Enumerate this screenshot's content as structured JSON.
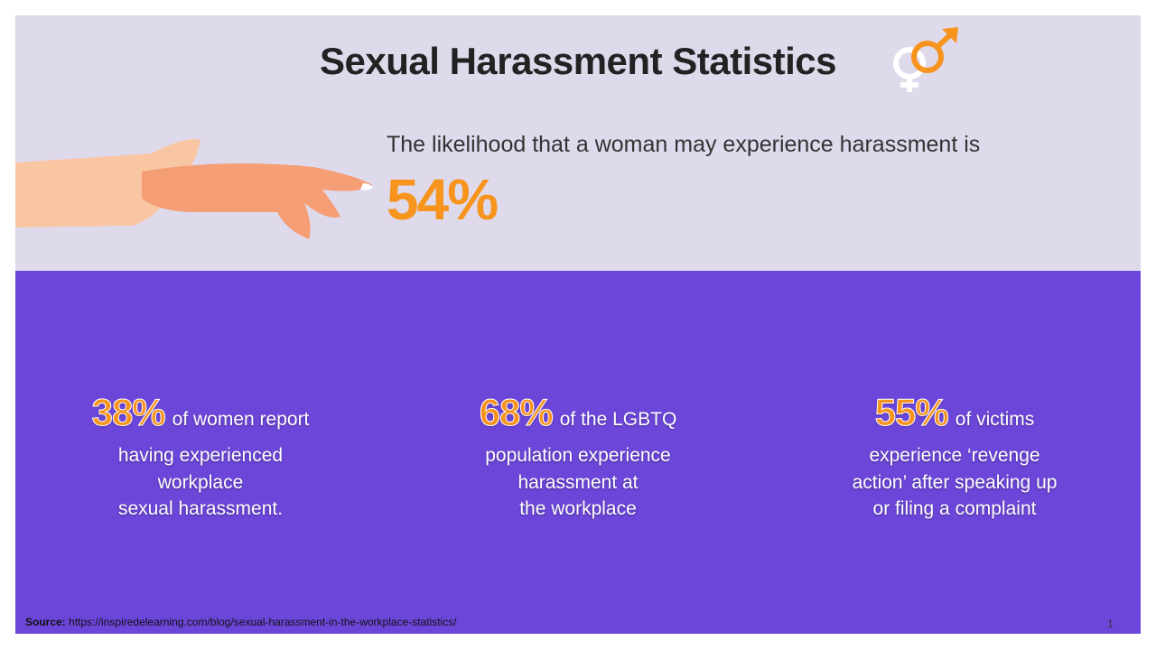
{
  "header": {
    "title": "Sexual Harassment Statistics"
  },
  "headline": {
    "text": "The likelihood that a woman may experience harassment is",
    "stat": "54%"
  },
  "stats": [
    {
      "stat": "38%",
      "lines": [
        "of women report",
        "having experienced",
        "workplace",
        "sexual harassment."
      ]
    },
    {
      "stat": "68%",
      "lines": [
        "of the LGBTQ",
        "population experience",
        "harassment at",
        "the workplace"
      ]
    },
    {
      "stat": "55%",
      "lines": [
        "of victims",
        "experience ‘revenge",
        "action’ after speaking up",
        "or filing a complaint"
      ]
    }
  ],
  "footer": {
    "source_label": "Source:",
    "source_url": "https://inspiredelearning.com/blog/sexual-harassment-in-the-workplace-statistics/",
    "page_number": "1"
  }
}
